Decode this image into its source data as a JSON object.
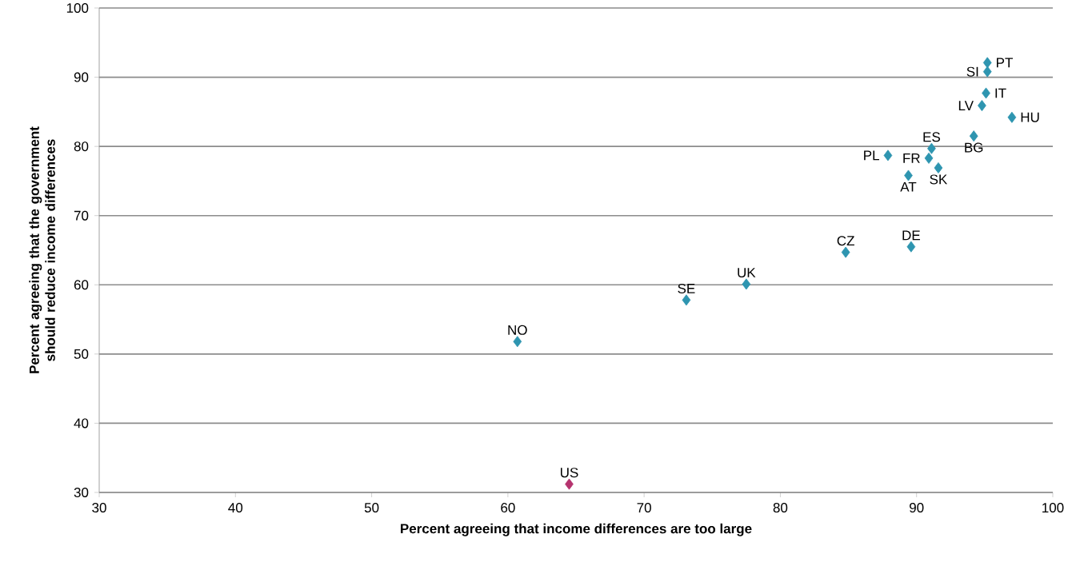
{
  "chart_data": {
    "type": "scatter",
    "xlabel": "Percent agreeing that income differences are too large",
    "ylabel": "Percent agreeing that the government should reduce income differences",
    "xlim": [
      30,
      100
    ],
    "xticks": [
      30,
      40,
      50,
      60,
      70,
      80,
      90,
      100
    ],
    "ylim": [
      30,
      100
    ],
    "yticks": [
      30,
      40,
      50,
      60,
      70,
      80,
      90,
      100
    ],
    "grid": "y",
    "marker": "diamond",
    "series": [
      {
        "color": "#2e95b0",
        "x": [
          95.2,
          95.2,
          95.1,
          94.8,
          97.0,
          94.2,
          91.1,
          90.9,
          91.6,
          87.9,
          89.4,
          84.8,
          89.6,
          77.5,
          73.1,
          60.7
        ],
        "values": [
          92.1,
          90.8,
          87.7,
          85.9,
          84.2,
          81.5,
          79.7,
          78.3,
          76.9,
          78.7,
          75.8,
          64.7,
          65.5,
          60.1,
          57.8,
          51.8
        ]
      },
      {
        "color": "#b5336e",
        "x": [
          64.5
        ],
        "values": [
          31.2
        ]
      }
    ],
    "annotations": [
      {
        "text": "PT",
        "x": 95.2,
        "y": 92.1
      },
      {
        "text": "SI",
        "x": 95.2,
        "y": 90.8
      },
      {
        "text": "IT",
        "x": 95.1,
        "y": 87.7
      },
      {
        "text": "LV",
        "x": 94.8,
        "y": 85.9
      },
      {
        "text": "HU",
        "x": 97.0,
        "y": 84.2
      },
      {
        "text": "BG",
        "x": 94.2,
        "y": 81.5
      },
      {
        "text": "ES",
        "x": 91.1,
        "y": 79.7
      },
      {
        "text": "FR",
        "x": 90.9,
        "y": 78.3
      },
      {
        "text": "SK",
        "x": 91.6,
        "y": 76.9
      },
      {
        "text": "PL",
        "x": 87.9,
        "y": 78.7
      },
      {
        "text": "AT",
        "x": 89.4,
        "y": 75.8
      },
      {
        "text": "CZ",
        "x": 84.8,
        "y": 64.7
      },
      {
        "text": "DE",
        "x": 89.6,
        "y": 65.5
      },
      {
        "text": "UK",
        "x": 77.5,
        "y": 60.1
      },
      {
        "text": "SE",
        "x": 73.1,
        "y": 57.8
      },
      {
        "text": "NO",
        "x": 60.7,
        "y": 51.8
      },
      {
        "text": "US",
        "x": 64.5,
        "y": 31.2
      }
    ]
  }
}
